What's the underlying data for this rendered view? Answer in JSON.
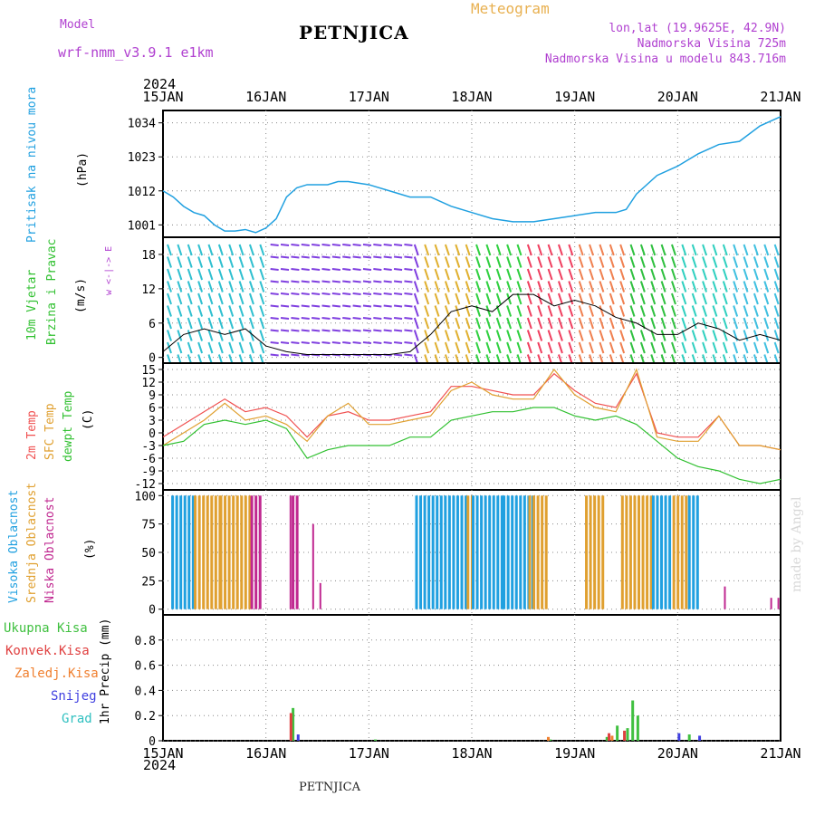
{
  "header": {
    "model_label": "Model",
    "model_name": "wrf-nmm_v3.9.1  e1km",
    "station": "PETNJICA",
    "meteogram_label": "Meteogram",
    "lonlat": "lon,lat (19.9625E, 42.9N)",
    "elevation": "Nadmorska Visina 725m",
    "model_elevation": "Nadmorska Visina u modelu 843.716m"
  },
  "time_axis": {
    "year": "2024",
    "ticks": [
      "15JAN",
      "16JAN",
      "17JAN",
      "18JAN",
      "19JAN",
      "20JAN",
      "21JAN"
    ]
  },
  "panels": {
    "pressure": {
      "label": "Pritisak na nivou mora",
      "unit": "(hPa)"
    },
    "wind": {
      "label1": "10m Vjetar",
      "label2": "Brzina i Pravac",
      "unit": "(m/s)",
      "compass": "w <-|-> E"
    },
    "temp": {
      "label1": "2m Temp",
      "label2": "SFC Temp",
      "label3": "dewpt Temp",
      "unit": "(C)"
    },
    "cloud": {
      "label1": "Visoka Oblacnost",
      "label2": "Srednja Oblacnost",
      "label3": "Niska Oblacnost",
      "unit": "(%)"
    },
    "precip": {
      "legend": [
        "Ukupna Kisa",
        "Konvek.Kisa",
        "Zaledj.Kisa",
        "Snijeg",
        "Grad"
      ],
      "unit": "1hr Precip (mm)"
    }
  },
  "footer": {
    "station": "PETNJICA",
    "madeby": "made by Angel"
  },
  "colors": {
    "pressure": "#20a0e0",
    "temp2m": "#f05050",
    "sfc": "#e0a030",
    "dew": "#30c030",
    "high": "#20a0e0",
    "mid": "#e0a030",
    "low": "#c02890",
    "rain": "#40c040",
    "conv": "#e04040",
    "frz": "#f08030",
    "snow": "#4040e0",
    "grad": "#30c0c0",
    "windline": "#000000"
  },
  "chart_data": [
    {
      "type": "line",
      "title": "Pritisak na nivou mora",
      "ylabel": "(hPa)",
      "ylim": [
        997,
        1038
      ],
      "yticks": [
        1001,
        1012,
        1023,
        1034
      ],
      "x": [
        0,
        0.1,
        0.2,
        0.3,
        0.4,
        0.5,
        0.6,
        0.7,
        0.8,
        0.9,
        1.0,
        1.1,
        1.2,
        1.3,
        1.4,
        1.5,
        1.6,
        1.7,
        1.8,
        1.9,
        2.0,
        2.2,
        2.4,
        2.6,
        2.8,
        3.0,
        3.2,
        3.4,
        3.6,
        3.8,
        4.0,
        4.2,
        4.4,
        4.5,
        4.6,
        4.8,
        5.0,
        5.2,
        5.4,
        5.6,
        5.8,
        6.0
      ],
      "series": [
        {
          "name": "MSLP",
          "values": [
            1012,
            1010,
            1007,
            1005,
            1004,
            1001,
            999,
            999,
            999.5,
            998.5,
            1000,
            1003,
            1010,
            1013,
            1014,
            1014,
            1014,
            1015,
            1015,
            1014.5,
            1014,
            1012,
            1010,
            1010,
            1007,
            1005,
            1003,
            1002,
            1002,
            1003,
            1004,
            1005,
            1005,
            1006,
            1011,
            1017,
            1020,
            1024,
            1027,
            1028,
            1033,
            1036
          ]
        }
      ]
    },
    {
      "type": "line",
      "title": "10m Vjetar Brzina i Pravac",
      "ylabel": "(m/s)",
      "ylim": [
        -1,
        21
      ],
      "yticks": [
        0,
        6,
        12,
        18
      ],
      "x": [
        0,
        0.2,
        0.4,
        0.6,
        0.8,
        1.0,
        1.2,
        1.4,
        1.6,
        1.8,
        2.0,
        2.2,
        2.4,
        2.6,
        2.8,
        3.0,
        3.2,
        3.4,
        3.6,
        3.8,
        4.0,
        4.2,
        4.4,
        4.6,
        4.8,
        5.0,
        5.2,
        5.4,
        5.6,
        5.8,
        6.0
      ],
      "series": [
        {
          "name": "speed",
          "values": [
            1,
            4,
            5,
            4,
            5,
            2,
            1,
            0.5,
            0.5,
            0.5,
            0.5,
            0.5,
            1,
            4,
            8,
            9,
            8,
            11,
            11,
            9,
            10,
            9,
            7,
            6,
            4,
            4,
            6,
            5,
            3,
            4,
            3
          ]
        }
      ]
    },
    {
      "type": "line",
      "title": "Temperatura",
      "ylabel": "(C)",
      "ylim": [
        -13.5,
        16.5
      ],
      "yticks": [
        -12,
        -9,
        -6,
        -3,
        0,
        3,
        6,
        9,
        12,
        15
      ],
      "x": [
        0,
        0.2,
        0.4,
        0.6,
        0.8,
        1.0,
        1.2,
        1.4,
        1.6,
        1.8,
        2.0,
        2.2,
        2.4,
        2.6,
        2.8,
        3.0,
        3.2,
        3.4,
        3.6,
        3.8,
        4.0,
        4.2,
        4.4,
        4.6,
        4.8,
        5.0,
        5.2,
        5.4,
        5.6,
        5.8,
        6.0
      ],
      "series": [
        {
          "name": "2m Temp",
          "values": [
            -1,
            2,
            5,
            8,
            5,
            6,
            4,
            -1,
            4,
            5,
            3,
            3,
            4,
            5,
            11,
            11,
            10,
            9,
            9,
            14,
            10,
            7,
            6,
            14,
            0,
            -1,
            -1,
            4,
            -3,
            -3,
            -4
          ]
        },
        {
          "name": "SFC Temp",
          "values": [
            -3,
            0,
            3,
            7,
            3,
            4,
            2,
            -2,
            4,
            7,
            2,
            2,
            3,
            4,
            10,
            12,
            9,
            8,
            8,
            15,
            9,
            6,
            5,
            15,
            -1,
            -2,
            -2,
            4,
            -3,
            -3,
            -4
          ]
        },
        {
          "name": "dewpt Temp",
          "values": [
            -3,
            -2,
            2,
            3,
            2,
            3,
            1,
            -6,
            -4,
            -3,
            -3,
            -3,
            -1,
            -1,
            3,
            4,
            5,
            5,
            6,
            6,
            4,
            3,
            4,
            2,
            -2,
            -6,
            -8,
            -9,
            -11,
            -12,
            -11
          ]
        }
      ]
    },
    {
      "type": "bar",
      "title": "Oblacnost",
      "ylabel": "(%)",
      "ylim": [
        -5,
        105
      ],
      "yticks": [
        0,
        25,
        50,
        75,
        100
      ]
    },
    {
      "type": "bar",
      "title": "1hr Precip",
      "ylabel": "(mm)",
      "ylim": [
        0,
        1.0
      ],
      "yticks": [
        0,
        0.2,
        0.4,
        0.6,
        0.8
      ],
      "series": [
        {
          "name": "Ukupna Kisa",
          "x": [
            1.25,
            2.05,
            3.75,
            4.3,
            4.4,
            4.5,
            4.55,
            4.6,
            5.1
          ],
          "values": [
            0.26,
            0.01,
            0.01,
            0.03,
            0.12,
            0.1,
            0.32,
            0.2,
            0.05
          ]
        },
        {
          "name": "Konvek.Kisa",
          "x": [
            1.23,
            4.32,
            4.47
          ],
          "values": [
            0.22,
            0.06,
            0.08
          ]
        },
        {
          "name": "Zaledj.Kisa",
          "x": [
            3.73,
            4.35
          ],
          "values": [
            0.03,
            0.04
          ]
        },
        {
          "name": "Snijeg",
          "x": [
            1.3,
            5.0,
            5.2
          ],
          "values": [
            0.05,
            0.06,
            0.04
          ]
        },
        {
          "name": "Grad",
          "x": [],
          "values": []
        }
      ]
    }
  ]
}
